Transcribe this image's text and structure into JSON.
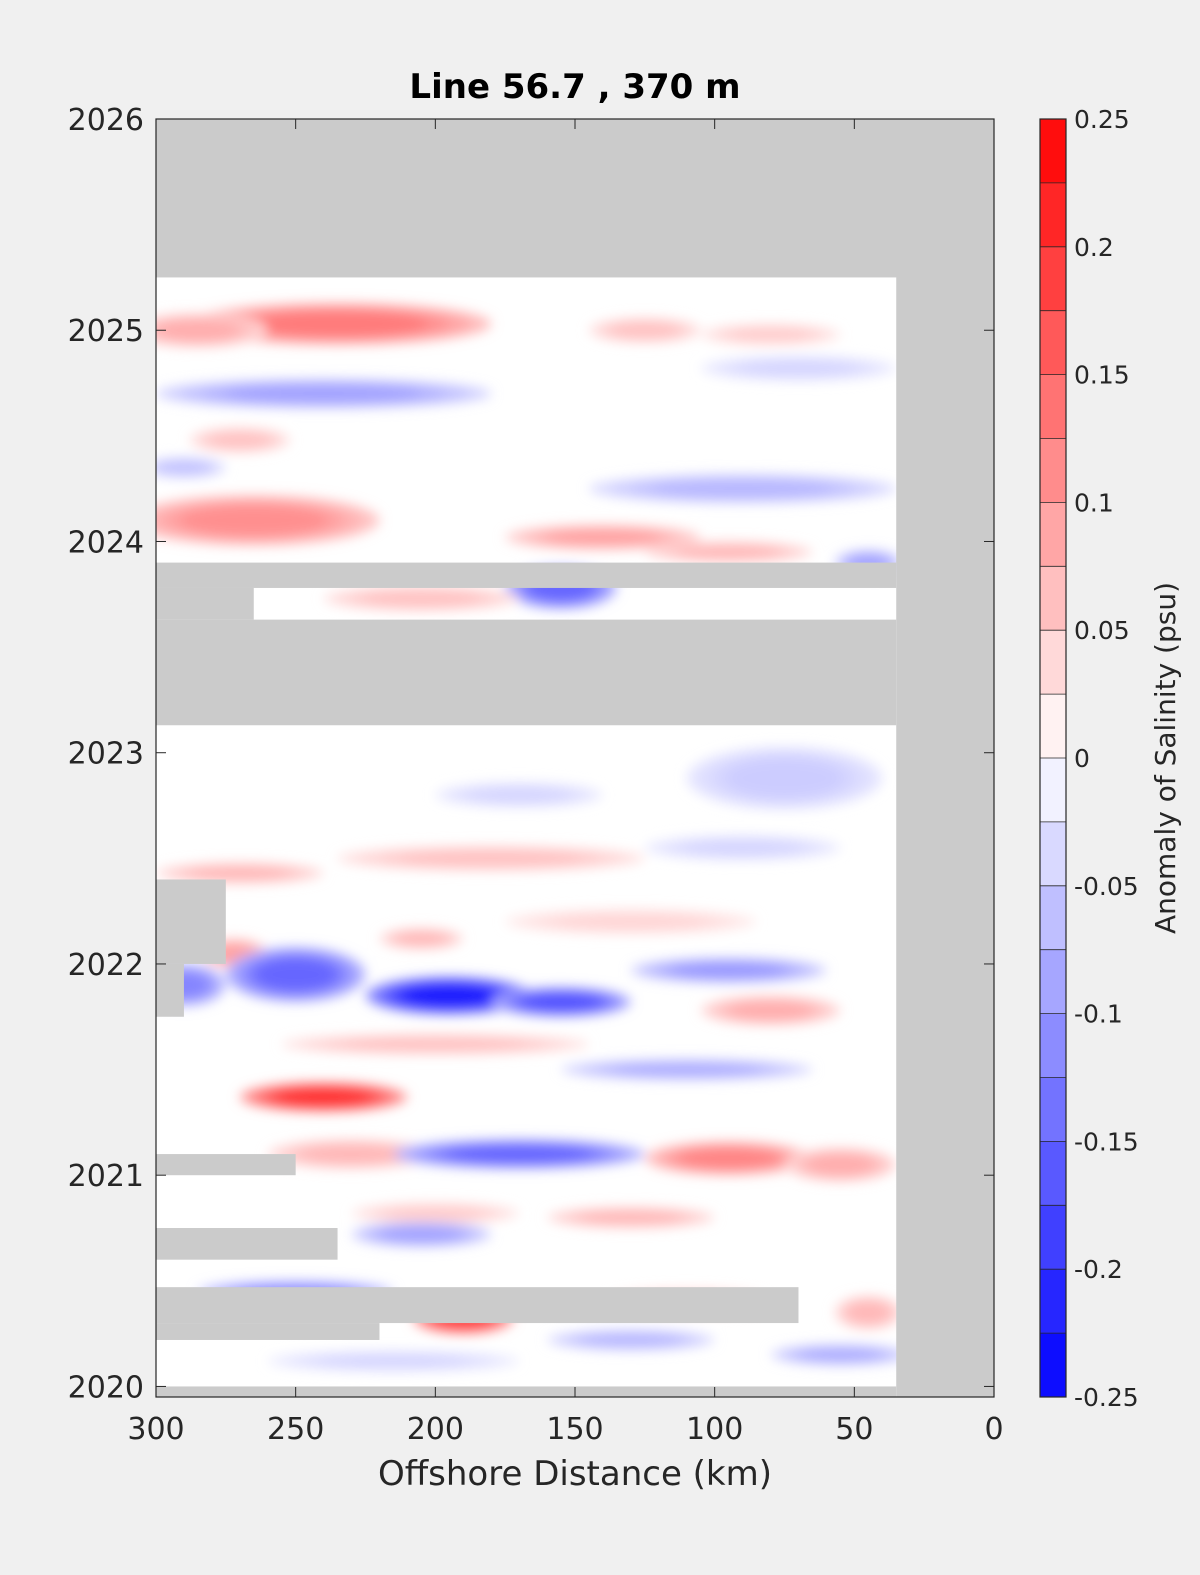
{
  "chart_data": {
    "type": "heatmap",
    "title": "Line 56.7 , 370 m",
    "xlabel": "Offshore Distance (km)",
    "ylabel": "",
    "x_reversed": true,
    "xlim": [
      0,
      300
    ],
    "ylim": [
      2019.95,
      2026
    ],
    "xticks": [
      300,
      250,
      200,
      150,
      100,
      50,
      0
    ],
    "yticks": [
      2020,
      2021,
      2022,
      2023,
      2024,
      2025,
      2026
    ],
    "colorbar": {
      "label": "Anomaly of Salinity (psu)",
      "ticks": [
        0.25,
        0.2,
        0.15,
        0.1,
        0.05,
        0,
        -0.05,
        -0.1,
        -0.15,
        -0.2,
        -0.25
      ],
      "range": [
        -0.25,
        0.25
      ],
      "colors": {
        "negative_max": "#0000ff",
        "zero": "#ffffff",
        "positive_max": "#ff0000",
        "no_data": "#cbcbcb"
      }
    },
    "data_extent": {
      "x_range_km": [
        35,
        300
      ],
      "y_range_years": [
        2020.0,
        2025.25
      ]
    },
    "features": [
      {
        "kind": "anomaly",
        "x": 235,
        "y": 2025.03,
        "value": 0.13,
        "rx": 55,
        "ry": 0.1
      },
      {
        "kind": "anomaly",
        "x": 285,
        "y": 2025.0,
        "value": 0.08,
        "rx": 25,
        "ry": 0.08
      },
      {
        "kind": "anomaly",
        "x": 125,
        "y": 2025.0,
        "value": 0.06,
        "rx": 20,
        "ry": 0.06
      },
      {
        "kind": "anomaly",
        "x": 80,
        "y": 2024.98,
        "value": 0.05,
        "rx": 25,
        "ry": 0.05
      },
      {
        "kind": "anomaly",
        "x": 240,
        "y": 2024.7,
        "value": -0.09,
        "rx": 60,
        "ry": 0.07
      },
      {
        "kind": "anomaly",
        "x": 70,
        "y": 2024.82,
        "value": -0.04,
        "rx": 35,
        "ry": 0.06
      },
      {
        "kind": "anomaly",
        "x": 270,
        "y": 2024.48,
        "value": 0.06,
        "rx": 18,
        "ry": 0.06
      },
      {
        "kind": "anomaly",
        "x": 90,
        "y": 2024.25,
        "value": -0.07,
        "rx": 55,
        "ry": 0.07
      },
      {
        "kind": "anomaly",
        "x": 290,
        "y": 2024.35,
        "value": -0.06,
        "rx": 15,
        "ry": 0.05
      },
      {
        "kind": "anomaly",
        "x": 265,
        "y": 2024.1,
        "value": 0.11,
        "rx": 45,
        "ry": 0.12
      },
      {
        "kind": "anomaly",
        "x": 140,
        "y": 2024.02,
        "value": 0.09,
        "rx": 35,
        "ry": 0.06
      },
      {
        "kind": "anomaly",
        "x": 95,
        "y": 2023.95,
        "value": 0.07,
        "rx": 30,
        "ry": 0.05
      },
      {
        "kind": "anomaly",
        "x": 155,
        "y": 2023.78,
        "value": -0.15,
        "rx": 20,
        "ry": 0.1
      },
      {
        "kind": "anomaly",
        "x": 205,
        "y": 2023.73,
        "value": 0.06,
        "rx": 35,
        "ry": 0.06
      },
      {
        "kind": "anomaly",
        "x": 45,
        "y": 2023.9,
        "value": -0.09,
        "rx": 12,
        "ry": 0.06
      },
      {
        "kind": "anomaly",
        "x": 75,
        "y": 2022.88,
        "value": -0.05,
        "rx": 35,
        "ry": 0.15
      },
      {
        "kind": "anomaly",
        "x": 170,
        "y": 2022.8,
        "value": -0.04,
        "rx": 30,
        "ry": 0.06
      },
      {
        "kind": "anomaly",
        "x": 270,
        "y": 2022.43,
        "value": 0.07,
        "rx": 30,
        "ry": 0.05
      },
      {
        "kind": "anomaly",
        "x": 180,
        "y": 2022.5,
        "value": 0.06,
        "rx": 55,
        "ry": 0.06
      },
      {
        "kind": "anomaly",
        "x": 90,
        "y": 2022.55,
        "value": -0.04,
        "rx": 35,
        "ry": 0.06
      },
      {
        "kind": "anomaly",
        "x": 205,
        "y": 2022.12,
        "value": 0.07,
        "rx": 15,
        "ry": 0.05
      },
      {
        "kind": "anomaly",
        "x": 130,
        "y": 2022.2,
        "value": 0.04,
        "rx": 45,
        "ry": 0.06
      },
      {
        "kind": "anomaly",
        "x": 272,
        "y": 2022.05,
        "value": 0.09,
        "rx": 12,
        "ry": 0.07
      },
      {
        "kind": "anomaly",
        "x": 250,
        "y": 2021.95,
        "value": -0.15,
        "rx": 25,
        "ry": 0.13
      },
      {
        "kind": "anomaly",
        "x": 290,
        "y": 2021.9,
        "value": -0.12,
        "rx": 15,
        "ry": 0.1
      },
      {
        "kind": "anomaly",
        "x": 195,
        "y": 2021.85,
        "value": -0.22,
        "rx": 30,
        "ry": 0.09
      },
      {
        "kind": "anomaly",
        "x": 155,
        "y": 2021.82,
        "value": -0.17,
        "rx": 25,
        "ry": 0.07
      },
      {
        "kind": "anomaly",
        "x": 95,
        "y": 2021.97,
        "value": -0.1,
        "rx": 35,
        "ry": 0.06
      },
      {
        "kind": "anomaly",
        "x": 80,
        "y": 2021.78,
        "value": 0.08,
        "rx": 25,
        "ry": 0.07
      },
      {
        "kind": "anomaly",
        "x": 200,
        "y": 2021.62,
        "value": 0.06,
        "rx": 55,
        "ry": 0.05
      },
      {
        "kind": "anomaly",
        "x": 110,
        "y": 2021.5,
        "value": -0.08,
        "rx": 45,
        "ry": 0.05
      },
      {
        "kind": "anomaly",
        "x": 240,
        "y": 2021.37,
        "value": 0.2,
        "rx": 30,
        "ry": 0.07
      },
      {
        "kind": "anomaly",
        "x": 230,
        "y": 2021.1,
        "value": 0.07,
        "rx": 30,
        "ry": 0.07
      },
      {
        "kind": "anomaly",
        "x": 170,
        "y": 2021.1,
        "value": -0.15,
        "rx": 45,
        "ry": 0.07
      },
      {
        "kind": "anomaly",
        "x": 95,
        "y": 2021.08,
        "value": 0.12,
        "rx": 30,
        "ry": 0.08
      },
      {
        "kind": "anomaly",
        "x": 55,
        "y": 2021.05,
        "value": 0.08,
        "rx": 20,
        "ry": 0.08
      },
      {
        "kind": "anomaly",
        "x": 130,
        "y": 2020.8,
        "value": 0.07,
        "rx": 30,
        "ry": 0.05
      },
      {
        "kind": "anomaly",
        "x": 200,
        "y": 2020.82,
        "value": 0.05,
        "rx": 30,
        "ry": 0.05
      },
      {
        "kind": "anomaly",
        "x": 205,
        "y": 2020.72,
        "value": -0.09,
        "rx": 25,
        "ry": 0.06
      },
      {
        "kind": "anomaly",
        "x": 250,
        "y": 2020.45,
        "value": -0.11,
        "rx": 35,
        "ry": 0.05
      },
      {
        "kind": "anomaly",
        "x": 190,
        "y": 2020.32,
        "value": 0.19,
        "rx": 18,
        "ry": 0.07
      },
      {
        "kind": "anomaly",
        "x": 110,
        "y": 2020.4,
        "value": 0.05,
        "rx": 30,
        "ry": 0.06
      },
      {
        "kind": "anomaly",
        "x": 130,
        "y": 2020.22,
        "value": -0.07,
        "rx": 30,
        "ry": 0.05
      },
      {
        "kind": "anomaly",
        "x": 45,
        "y": 2020.35,
        "value": 0.07,
        "rx": 12,
        "ry": 0.08
      },
      {
        "kind": "anomaly",
        "x": 55,
        "y": 2020.15,
        "value": -0.08,
        "rx": 25,
        "ry": 0.05
      },
      {
        "kind": "anomaly",
        "x": 215,
        "y": 2020.12,
        "value": -0.04,
        "rx": 45,
        "ry": 0.05
      },
      {
        "kind": "no_data",
        "x0": 0,
        "x1": 300,
        "y0": 2025.25,
        "y1": 2026
      },
      {
        "kind": "no_data",
        "x0": 0,
        "x1": 35,
        "y0": 2019.95,
        "y1": 2026
      },
      {
        "kind": "no_data",
        "x0": 35,
        "x1": 300,
        "y0": 2023.13,
        "y1": 2023.63
      },
      {
        "kind": "no_data",
        "x0": 35,
        "x1": 300,
        "y0": 2023.78,
        "y1": 2023.9
      },
      {
        "kind": "no_data",
        "x0": 265,
        "x1": 300,
        "y0": 2023.63,
        "y1": 2023.78
      },
      {
        "kind": "no_data",
        "x0": 275,
        "x1": 300,
        "y0": 2022.0,
        "y1": 2022.4
      },
      {
        "kind": "no_data",
        "x0": 290,
        "x1": 300,
        "y0": 2021.75,
        "y1": 2022.0
      },
      {
        "kind": "no_data",
        "x0": 250,
        "x1": 300,
        "y0": 2021.0,
        "y1": 2021.1
      },
      {
        "kind": "no_data",
        "x0": 235,
        "x1": 300,
        "y0": 2020.6,
        "y1": 2020.75
      },
      {
        "kind": "no_data",
        "x0": 70,
        "x1": 300,
        "y0": 2020.3,
        "y1": 2020.47
      },
      {
        "kind": "no_data",
        "x0": 220,
        "x1": 300,
        "y0": 2020.22,
        "y1": 2020.3
      },
      {
        "kind": "no_data",
        "x0": 35,
        "x1": 300,
        "y0": 2019.95,
        "y1": 2020.0
      }
    ]
  }
}
